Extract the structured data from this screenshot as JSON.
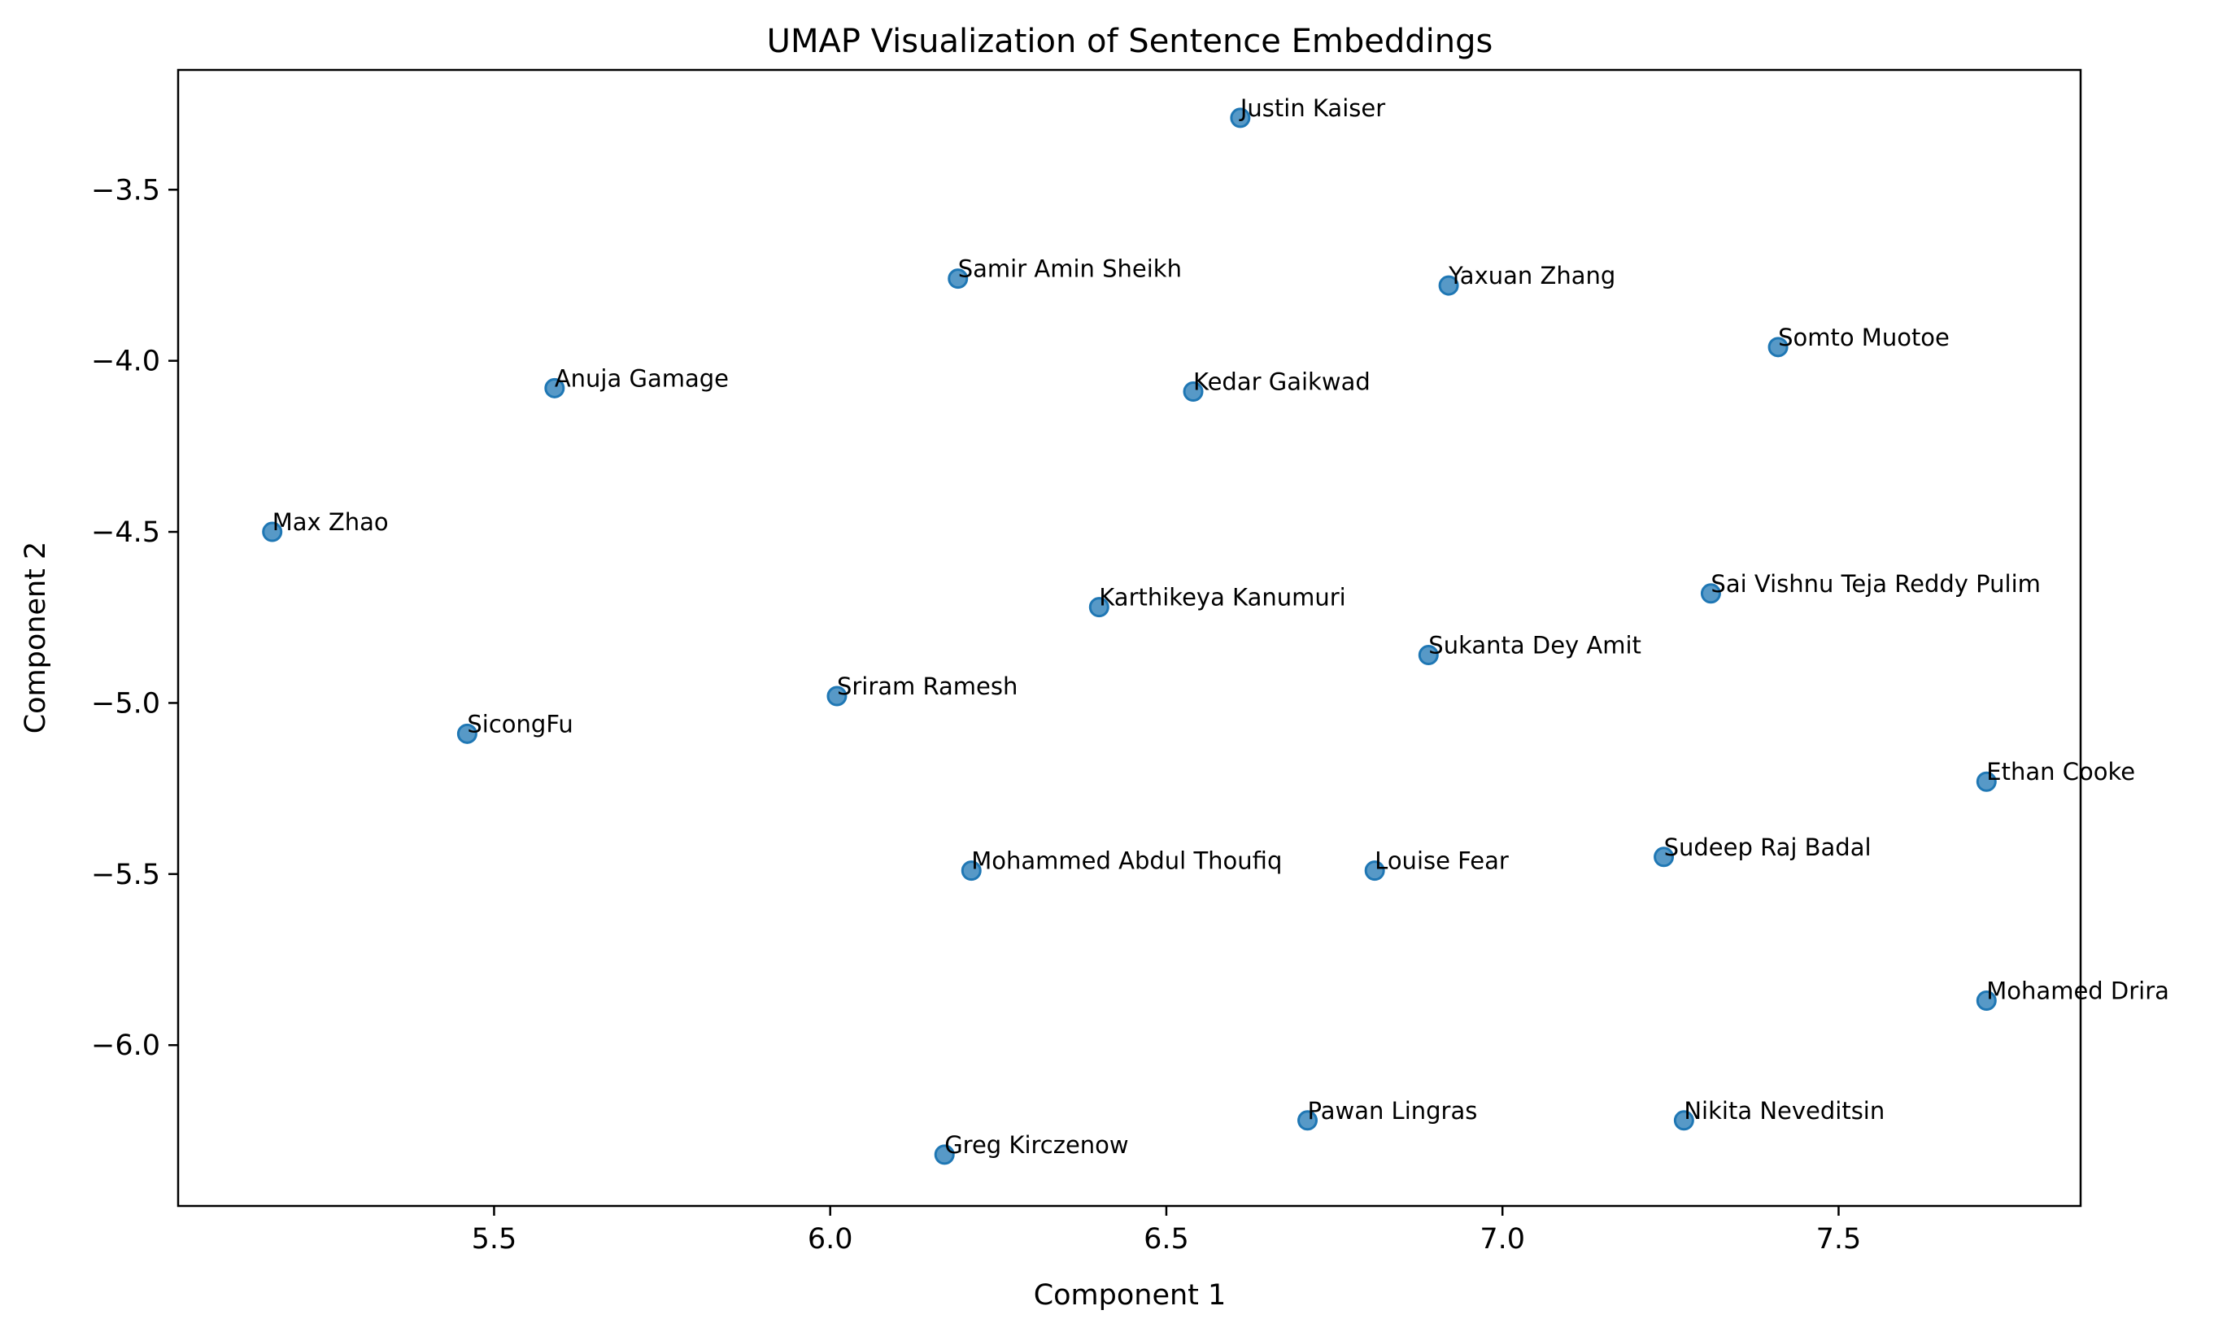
{
  "chart_data": {
    "type": "scatter",
    "title": "UMAP Visualization of Sentence Embeddings",
    "xlabel": "Component 1",
    "ylabel": "Component 2",
    "xlim": [
      5.03,
      7.86
    ],
    "ylim": [
      -6.47,
      -3.15
    ],
    "xticks": [
      5.5,
      6.0,
      6.5,
      7.0,
      7.5
    ],
    "yticks": [
      -3.5,
      -4.0,
      -4.5,
      -5.0,
      -5.5,
      -6.0
    ],
    "xtick_labels": [
      "5.5",
      "6.0",
      "6.5",
      "7.0",
      "7.5"
    ],
    "ytick_labels": [
      "−3.5",
      "−4.0",
      "−4.5",
      "−5.0",
      "−5.5",
      "−6.0"
    ],
    "grid": false,
    "color": "#1f77b4",
    "points": [
      {
        "label": "Justin Kaiser",
        "x": 6.61,
        "y": -3.29
      },
      {
        "label": "Samir Amin Sheikh",
        "x": 6.19,
        "y": -3.76
      },
      {
        "label": "Yaxuan Zhang",
        "x": 6.92,
        "y": -3.78
      },
      {
        "label": "Somto Muotoe",
        "x": 7.41,
        "y": -3.96
      },
      {
        "label": "Anuja Gamage",
        "x": 5.59,
        "y": -4.08
      },
      {
        "label": "Kedar Gaikwad",
        "x": 6.54,
        "y": -4.09
      },
      {
        "label": "Max Zhao",
        "x": 5.17,
        "y": -4.5
      },
      {
        "label": "Sai Vishnu Teja Reddy Pulim",
        "x": 7.31,
        "y": -4.68
      },
      {
        "label": "Karthikeya Kanumuri",
        "x": 6.4,
        "y": -4.72
      },
      {
        "label": "Sukanta Dey Amit",
        "x": 6.89,
        "y": -4.86
      },
      {
        "label": "Sriram Ramesh",
        "x": 6.01,
        "y": -4.98
      },
      {
        "label": "SicongFu",
        "x": 5.46,
        "y": -5.09
      },
      {
        "label": "Ethan Cooke",
        "x": 7.72,
        "y": -5.23
      },
      {
        "label": "Sudeep Raj Badal",
        "x": 7.24,
        "y": -5.45
      },
      {
        "label": "Mohammed Abdul Thoufiq",
        "x": 6.21,
        "y": -5.49
      },
      {
        "label": "Louise Fear",
        "x": 6.81,
        "y": -5.49
      },
      {
        "label": "Mohamed Drira",
        "x": 7.72,
        "y": -5.87
      },
      {
        "label": "Pawan Lingras",
        "x": 6.71,
        "y": -6.22
      },
      {
        "label": "Nikita Neveditsin",
        "x": 7.27,
        "y": -6.22
      },
      {
        "label": "Greg Kirczenow",
        "x": 6.17,
        "y": -6.32
      }
    ]
  }
}
